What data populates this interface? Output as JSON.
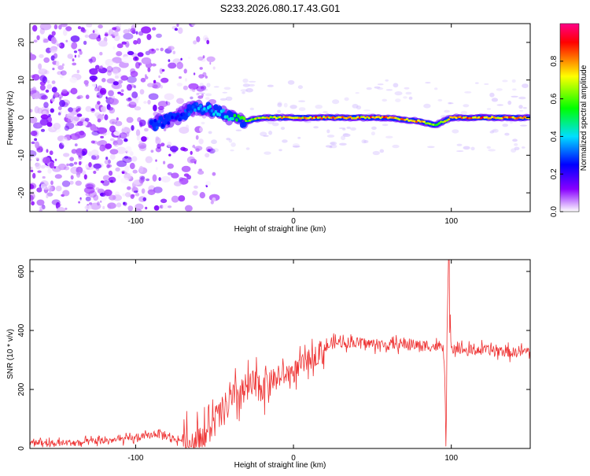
{
  "title": "S233.2026.080.17.43.G01",
  "chart_data": [
    {
      "type": "heatmap",
      "title": "S233.2026.080.17.43.G01",
      "xlabel": "Height of straight line (km)",
      "ylabel": "Frequency (Hz)",
      "xlim": [
        -167,
        150
      ],
      "ylim": [
        -25,
        25
      ],
      "xticks": [
        -100,
        0,
        100
      ],
      "yticks": [
        -20,
        -10,
        0,
        10,
        20
      ],
      "colorbar": {
        "label": "Normalized spectral amplitude",
        "range": [
          0,
          1
        ],
        "ticks": [
          0.0,
          0.2,
          0.4,
          0.6,
          0.8
        ],
        "colors": [
          "#ffffff",
          "#8800ff",
          "#0000ff",
          "#00dfff",
          "#00ff00",
          "#ffff00",
          "#ff0000"
        ]
      },
      "ridge": {
        "description": "signal ridge near 0 Hz",
        "x": [
          -90,
          -75,
          -60,
          -50,
          -40,
          -30,
          -20,
          0,
          20,
          40,
          60,
          80,
          90,
          100,
          120,
          150
        ],
        "freq": [
          -2,
          0,
          3,
          2,
          0,
          -1,
          0,
          0,
          0,
          0,
          0,
          -1,
          -2,
          0,
          0,
          0
        ],
        "amplitude": [
          0.3,
          0.25,
          0.35,
          0.4,
          0.45,
          0.6,
          0.7,
          0.75,
          0.8,
          0.75,
          0.8,
          0.75,
          0.6,
          0.8,
          0.8,
          0.75
        ]
      },
      "noise_region": {
        "x": [
          -167,
          -60
        ],
        "amplitude_max": 0.15
      }
    },
    {
      "type": "line",
      "xlabel": "Height of straight line (km)",
      "ylabel": "SNR (10 * v/v)",
      "xlim": [
        -167,
        150
      ],
      "ylim": [
        0,
        640
      ],
      "xticks": [
        -100,
        0,
        100
      ],
      "yticks": [
        0,
        200,
        400,
        600
      ],
      "series": [
        {
          "name": "SNR",
          "color": "#ee3333",
          "x": [
            -167,
            -150,
            -130,
            -110,
            -100,
            -90,
            -85,
            -80,
            -75,
            -70,
            -65,
            -60,
            -55,
            -50,
            -45,
            -40,
            -35,
            -30,
            -25,
            -20,
            -15,
            -10,
            -5,
            0,
            5,
            10,
            15,
            20,
            25,
            30,
            40,
            50,
            60,
            70,
            80,
            90,
            95,
            97,
            98,
            100,
            110,
            120,
            130,
            140,
            150
          ],
          "values": [
            20,
            18,
            22,
            30,
            35,
            45,
            55,
            40,
            30,
            28,
            25,
            30,
            50,
            90,
            120,
            160,
            180,
            200,
            210,
            220,
            230,
            240,
            250,
            260,
            280,
            300,
            320,
            340,
            355,
            360,
            360,
            355,
            350,
            355,
            350,
            345,
            340,
            80,
            620,
            350,
            330,
            335,
            330,
            325,
            330
          ]
        }
      ]
    }
  ]
}
